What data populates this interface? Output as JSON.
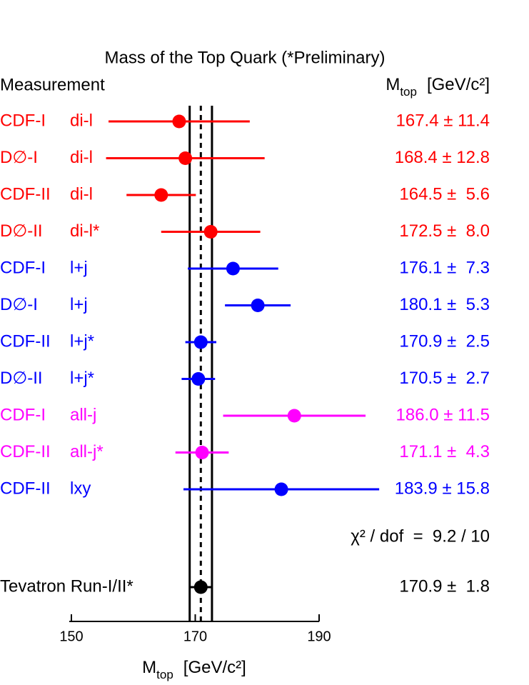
{
  "chart_data": {
    "type": "forest",
    "title": "Mass of the Top Quark (*Preliminary)",
    "column_headers": {
      "measurement": "Measurement",
      "value": {
        "symbol": "M",
        "subscript": "top",
        "unit": "[GeV/c²]"
      }
    },
    "rows": [
      {
        "experiment": "CDF-I",
        "channel": "di-l",
        "value": 167.4,
        "error": 11.4,
        "value_label": "167.4 ± 11.4",
        "color": "#ff0000"
      },
      {
        "experiment": "D∅-I",
        "channel": "di-l",
        "value": 168.4,
        "error": 12.8,
        "value_label": "168.4 ± 12.8",
        "color": "#ff0000"
      },
      {
        "experiment": "CDF-II",
        "channel": "di-l",
        "value": 164.5,
        "error": 5.6,
        "value_label": "164.5 ±  5.6",
        "color": "#ff0000"
      },
      {
        "experiment": "D∅-II",
        "channel": "di-l*",
        "value": 172.5,
        "error": 8.0,
        "value_label": "172.5 ±  8.0",
        "color": "#ff0000"
      },
      {
        "experiment": "CDF-I",
        "channel": "l+j",
        "value": 176.1,
        "error": 7.3,
        "value_label": "176.1 ±  7.3",
        "color": "#0000ff"
      },
      {
        "experiment": "D∅-I",
        "channel": "l+j",
        "value": 180.1,
        "error": 5.3,
        "value_label": "180.1 ±  5.3",
        "color": "#0000ff"
      },
      {
        "experiment": "CDF-II",
        "channel": "l+j*",
        "value": 170.9,
        "error": 2.5,
        "value_label": "170.9 ±  2.5",
        "color": "#0000ff"
      },
      {
        "experiment": "D∅-II",
        "channel": "l+j*",
        "value": 170.5,
        "error": 2.7,
        "value_label": "170.5 ±  2.7",
        "color": "#0000ff"
      },
      {
        "experiment": "CDF-I",
        "channel": "all-j",
        "value": 186.0,
        "error": 11.5,
        "value_label": "186.0 ± 11.5",
        "color": "#ff00ff"
      },
      {
        "experiment": "CDF-II",
        "channel": "all-j*",
        "value": 171.1,
        "error": 4.3,
        "value_label": "171.1 ±  4.3",
        "color": "#ff00ff"
      },
      {
        "experiment": "CDF-II",
        "channel": "lxy",
        "value": 183.9,
        "error": 15.8,
        "value_label": "183.9 ± 15.8",
        "color": "#0000ff"
      }
    ],
    "chi2_label": "χ² / dof  =  9.2 / 10",
    "combined": {
      "name": "Tevatron Run-I/II*",
      "value": 170.9,
      "error": 1.8,
      "value_label": "170.9 ±  1.8",
      "color": "#000000"
    },
    "xlabel": {
      "symbol": "M",
      "subscript": "top",
      "unit": "[GeV/c²]"
    },
    "xlim": [
      150,
      190
    ],
    "xticks": [
      150,
      170,
      190
    ]
  }
}
